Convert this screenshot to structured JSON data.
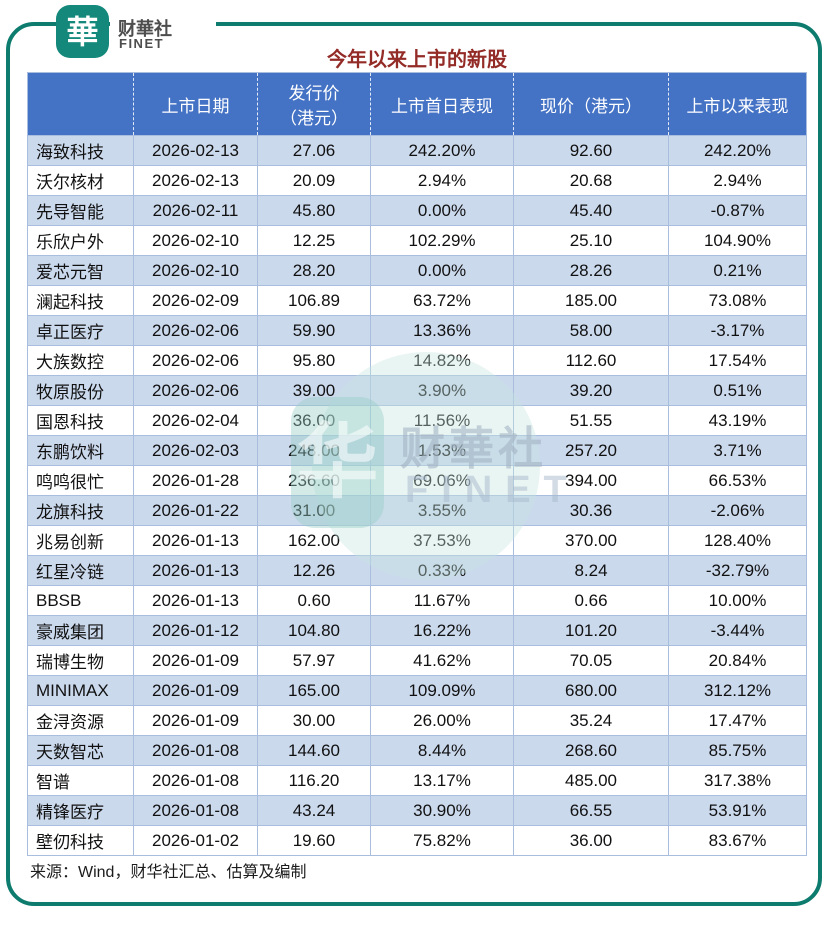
{
  "brand": {
    "logo_glyph": "華",
    "name": "财華社",
    "subname": "FINET"
  },
  "title": "今年以来上市的新股",
  "source": "来源：Wind，财华社汇总、估算及编制",
  "watermark": {
    "glyph": "华",
    "name": "财華社",
    "subname": "FINET"
  },
  "colors": {
    "frame_teal": "#0d7c6e",
    "logo_teal": "#14897b",
    "title_red": "#932b27",
    "header_bg": "#4472c4",
    "row_stripe": "#cbd9ed",
    "cell_border": "#a9bede"
  },
  "chart_data": {
    "type": "table",
    "title": "今年以来上市的新股",
    "columns": [
      {
        "label": ""
      },
      {
        "label": "上市日期"
      },
      {
        "label": "发行价",
        "label2": "（港元）"
      },
      {
        "label": "上市首日表现"
      },
      {
        "label": "现价（港元）"
      },
      {
        "label": "上市以来表现"
      }
    ],
    "rows": [
      [
        "海致科技",
        "2026-02-13",
        "27.06",
        "242.20%",
        "92.60",
        "242.20%"
      ],
      [
        "沃尔核材",
        "2026-02-13",
        "20.09",
        "2.94%",
        "20.68",
        "2.94%"
      ],
      [
        "先导智能",
        "2026-02-11",
        "45.80",
        "0.00%",
        "45.40",
        "-0.87%"
      ],
      [
        "乐欣户外",
        "2026-02-10",
        "12.25",
        "102.29%",
        "25.10",
        "104.90%"
      ],
      [
        "爱芯元智",
        "2026-02-10",
        "28.20",
        "0.00%",
        "28.26",
        "0.21%"
      ],
      [
        "澜起科技",
        "2026-02-09",
        "106.89",
        "63.72%",
        "185.00",
        "73.08%"
      ],
      [
        "卓正医疗",
        "2026-02-06",
        "59.90",
        "13.36%",
        "58.00",
        "-3.17%"
      ],
      [
        "大族数控",
        "2026-02-06",
        "95.80",
        "14.82%",
        "112.60",
        "17.54%"
      ],
      [
        "牧原股份",
        "2026-02-06",
        "39.00",
        "3.90%",
        "39.20",
        "0.51%"
      ],
      [
        "国恩科技",
        "2026-02-04",
        "36.00",
        "11.56%",
        "51.55",
        "43.19%"
      ],
      [
        "东鹏饮料",
        "2026-02-03",
        "248.00",
        "1.53%",
        "257.20",
        "3.71%"
      ],
      [
        "鸣鸣很忙",
        "2026-01-28",
        "236.60",
        "69.06%",
        "394.00",
        "66.53%"
      ],
      [
        "龙旗科技",
        "2026-01-22",
        "31.00",
        "3.55%",
        "30.36",
        "-2.06%"
      ],
      [
        "兆易创新",
        "2026-01-13",
        "162.00",
        "37.53%",
        "370.00",
        "128.40%"
      ],
      [
        "红星冷链",
        "2026-01-13",
        "12.26",
        "0.33%",
        "8.24",
        "-32.79%"
      ],
      [
        "BBSB",
        "2026-01-13",
        "0.60",
        "11.67%",
        "0.66",
        "10.00%"
      ],
      [
        "豪威集团",
        "2026-01-12",
        "104.80",
        "16.22%",
        "101.20",
        "-3.44%"
      ],
      [
        "瑞博生物",
        "2026-01-09",
        "57.97",
        "41.62%",
        "70.05",
        "20.84%"
      ],
      [
        "MINIMAX",
        "2026-01-09",
        "165.00",
        "109.09%",
        "680.00",
        "312.12%"
      ],
      [
        "金浔资源",
        "2026-01-09",
        "30.00",
        "26.00%",
        "35.24",
        "17.47%"
      ],
      [
        "天数智芯",
        "2026-01-08",
        "144.60",
        "8.44%",
        "268.60",
        "85.75%"
      ],
      [
        "智谱",
        "2026-01-08",
        "116.20",
        "13.17%",
        "485.00",
        "317.38%"
      ],
      [
        "精锋医疗",
        "2026-01-08",
        "43.24",
        "30.90%",
        "66.55",
        "53.91%"
      ],
      [
        "壁仞科技",
        "2026-01-02",
        "19.60",
        "75.82%",
        "36.00",
        "83.67%"
      ]
    ],
    "source": "来源：Wind，财华社汇总、估算及编制",
    "layout": {
      "banding": "odd-rows-light-blue",
      "header_text_color": "#ffffff"
    }
  }
}
